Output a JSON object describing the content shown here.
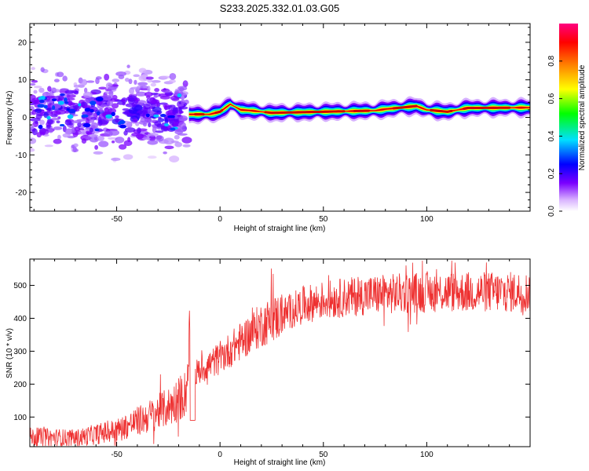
{
  "title": "S233.2025.332.01.03.G05",
  "chart_data": [
    {
      "type": "heatmap",
      "xlabel": "Height of straight line (km)",
      "ylabel": "Frequency (Hz)",
      "xlim": [
        -92,
        150
      ],
      "ylim": [
        -25,
        25
      ],
      "xticks": [
        -50,
        0,
        50,
        100
      ],
      "yticks": [
        -20,
        -10,
        0,
        10,
        20
      ],
      "colorbar": {
        "label": "Normalized spectral amplitude",
        "ticks": [
          0.0,
          0.2,
          0.4,
          0.6,
          0.8
        ],
        "range": [
          0,
          1
        ],
        "colors": [
          "#ffffff",
          "#d9b3ff",
          "#7a00ff",
          "#0000ff",
          "#00e0ff",
          "#00ff00",
          "#ffff00",
          "#ff8000",
          "#ff0000",
          "#ff0080"
        ]
      },
      "ridge": {
        "x": [
          -15,
          -5,
          0,
          5,
          10,
          15,
          25,
          50,
          75,
          80,
          95,
          100,
          110,
          120,
          150
        ],
        "freq_hz": [
          0.8,
          0.8,
          1.5,
          3.5,
          2.0,
          1.8,
          1.2,
          1.5,
          1.8,
          2.2,
          3.0,
          2.0,
          1.5,
          2.5,
          2.6
        ]
      }
    },
    {
      "type": "line",
      "xlabel": "Height of straight line (km)",
      "ylabel": "SNR (10 * v/v)",
      "xlim": [
        -92,
        150
      ],
      "ylim": [
        10,
        580
      ],
      "xticks": [
        -50,
        0,
        50,
        100
      ],
      "yticks": [
        100,
        200,
        300,
        400,
        500
      ],
      "color": "#ee3030",
      "trend": {
        "x": [
          -92,
          -70,
          -50,
          -35,
          -25,
          -17,
          -15,
          -10,
          0,
          10,
          20,
          30,
          40,
          50,
          70,
          100,
          150
        ],
        "y": [
          40,
          35,
          60,
          100,
          130,
          170,
          220,
          240,
          280,
          330,
          380,
          410,
          440,
          455,
          470,
          480,
          480
        ]
      }
    }
  ]
}
